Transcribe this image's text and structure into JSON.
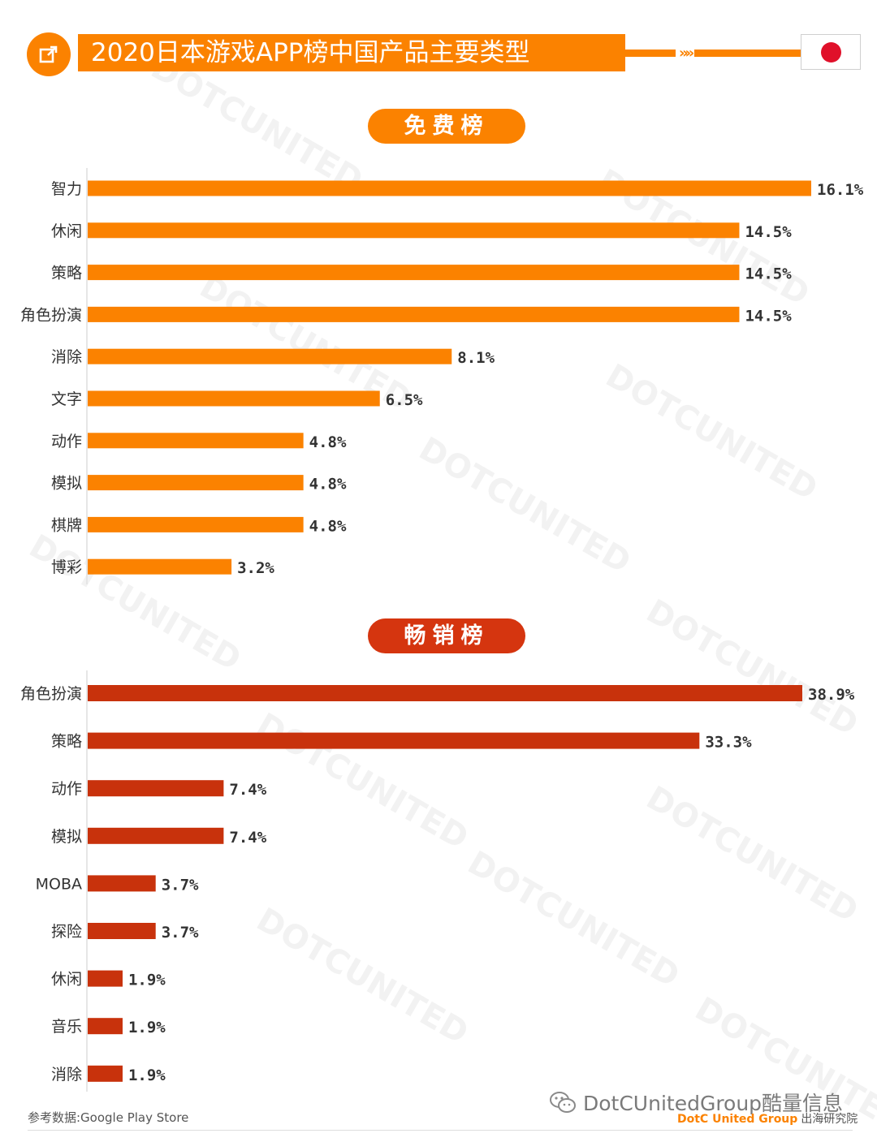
{
  "header": {
    "title": "2020日本游戏APP榜中国产品主要类型",
    "icon": "external-link-icon",
    "chevrons": "»»",
    "flag": "japan-flag-icon",
    "accent_color": "#fb8200",
    "flag_red": "#e0102a"
  },
  "watermark_text": "DOTCUNITED",
  "chart_data": [
    {
      "type": "bar",
      "orientation": "horizontal",
      "title": "免费榜",
      "color": "#fb8200",
      "categories": [
        "智力",
        "休闲",
        "策略",
        "角色扮演",
        "消除",
        "文字",
        "动作",
        "模拟",
        "棋牌",
        "博彩"
      ],
      "values": [
        16.1,
        14.5,
        14.5,
        14.5,
        8.1,
        6.5,
        4.8,
        4.8,
        4.8,
        3.2
      ],
      "labels": [
        "16.1%",
        "14.5%",
        "14.5%",
        "14.5%",
        "8.1%",
        "6.5%",
        "4.8%",
        "4.8%",
        "4.8%",
        "3.2%"
      ],
      "unit": "%",
      "grid": false,
      "legend": "none"
    },
    {
      "type": "bar",
      "orientation": "horizontal",
      "title": "畅销榜",
      "color": "#c8320c",
      "categories": [
        "角色扮演",
        "策略",
        "动作",
        "模拟",
        "MOBA",
        "探险",
        "休闲",
        "音乐",
        "消除"
      ],
      "values": [
        38.9,
        33.3,
        7.4,
        7.4,
        3.7,
        3.7,
        1.9,
        1.9,
        1.9
      ],
      "labels": [
        "38.9%",
        "33.3%",
        "7.4%",
        "7.4%",
        "3.7%",
        "3.7%",
        "1.9%",
        "1.9%",
        "1.9%"
      ],
      "unit": "%",
      "grid": false,
      "legend": "none"
    }
  ],
  "footer": {
    "source": "参考数据:Google Play Store",
    "wechat_icon": "wechat-icon",
    "wechat": "DotCUnitedGroup酷量信息",
    "brand": "DotC United Group",
    "brand_sub": "出海研究院"
  }
}
